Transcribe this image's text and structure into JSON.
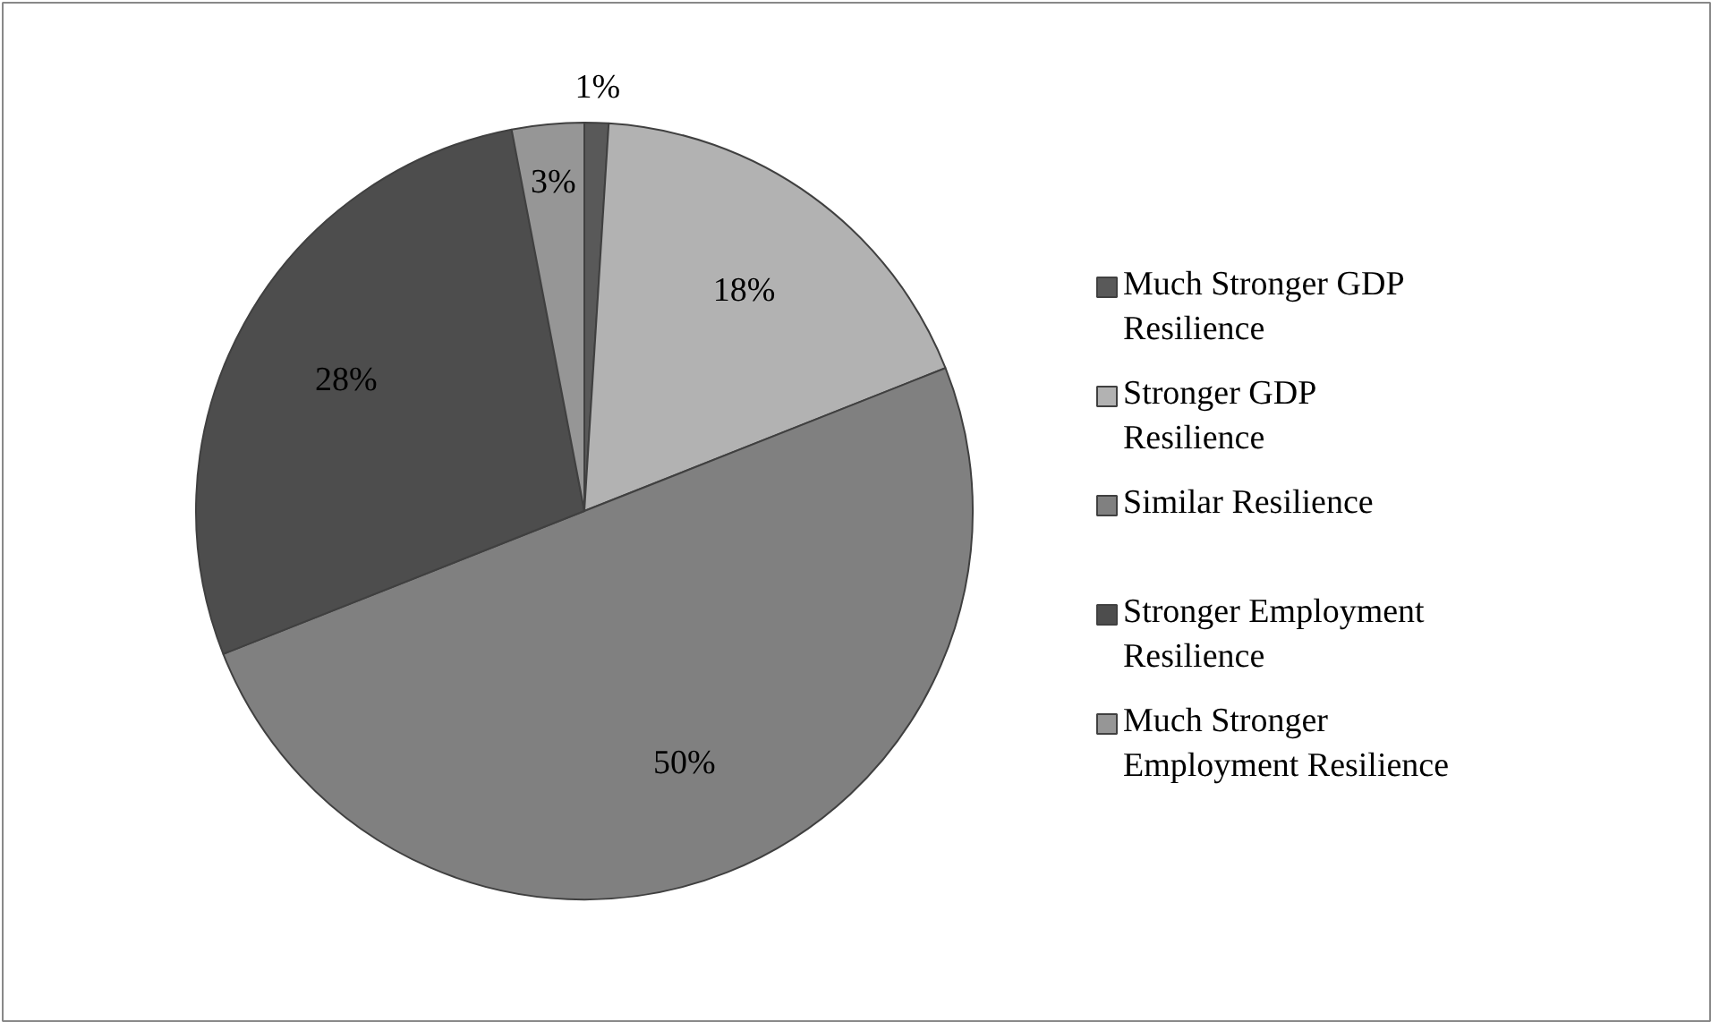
{
  "chart_data": {
    "type": "pie",
    "categories": [
      "Much Stronger GDP Resilience",
      "Stronger GDP Resilience",
      "Similar Resilience",
      "Stronger Employment Resilience",
      "Much Stronger Employment Resilience"
    ],
    "values": [
      1,
      18,
      50,
      28,
      3
    ],
    "colors": [
      "#595959",
      "#b2b2b2",
      "#808080",
      "#4d4d4d",
      "#969696"
    ],
    "value_labels": [
      "1%",
      "18%",
      "50%",
      "28%",
      "3%"
    ],
    "legend": "right"
  }
}
